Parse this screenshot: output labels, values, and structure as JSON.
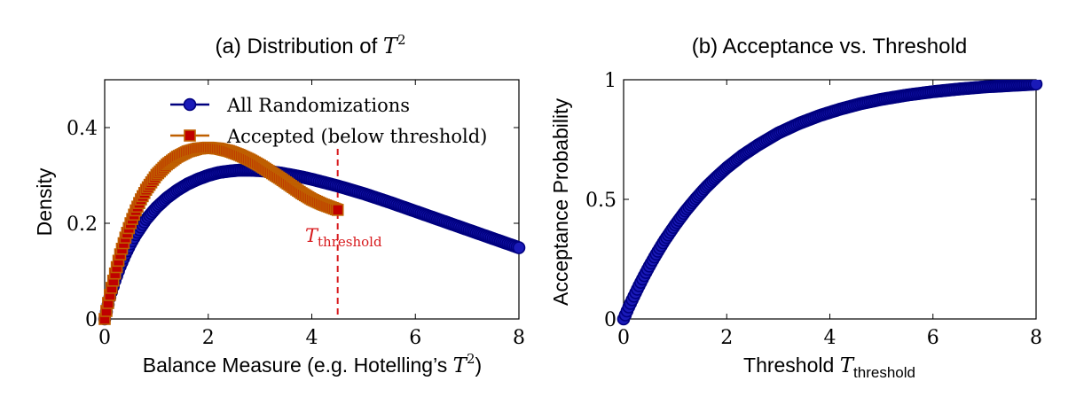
{
  "chart_data": [
    {
      "type": "line",
      "title_prefix": "(a) Distribution of",
      "title_symbol": "T",
      "title_sup": "2",
      "xlabel_prefix": "Balance Measure (e.g. Hotelling’s",
      "xlabel_symbol": "T",
      "xlabel_sup": "2",
      "xlabel_suffix": ")",
      "ylabel": "Density",
      "xlim": [
        0,
        8
      ],
      "ylim": [
        0,
        0.5
      ],
      "xticks": [
        0,
        2,
        4,
        6,
        8
      ],
      "yticks": [
        0,
        0.2,
        0.4
      ],
      "grid": false,
      "legend_position": "top-center",
      "series": [
        {
          "name": "All Randomizations",
          "color": "#00007f",
          "fill": "#1a1ab8",
          "marker": "circle",
          "x": [
            0,
            0.1,
            0.2,
            0.3,
            0.4,
            0.5,
            0.6,
            0.8,
            1.0,
            1.2,
            1.4,
            1.6,
            1.8,
            2.0,
            2.2,
            2.4,
            2.6,
            2.8,
            3.0,
            3.2,
            3.4,
            3.6,
            3.8,
            4.0,
            4.5,
            5.0,
            5.5,
            6.0,
            6.5,
            7.0,
            7.5,
            8.0
          ],
          "y": [
            0,
            0.045,
            0.08,
            0.11,
            0.135,
            0.157,
            0.176,
            0.208,
            0.233,
            0.253,
            0.269,
            0.282,
            0.292,
            0.3,
            0.306,
            0.309,
            0.311,
            0.311,
            0.31,
            0.308,
            0.305,
            0.301,
            0.297,
            0.292,
            0.278,
            0.262,
            0.244,
            0.225,
            0.206,
            0.187,
            0.168,
            0.149
          ]
        },
        {
          "name": "Accepted (below threshold)",
          "color": "#bf5f00",
          "fill": "#c00000",
          "marker": "square",
          "x": [
            0,
            0.1,
            0.2,
            0.3,
            0.4,
            0.5,
            0.6,
            0.7,
            0.8,
            1.0,
            1.2,
            1.4,
            1.6,
            1.8,
            2.0,
            2.2,
            2.4,
            2.6,
            2.8,
            3.0,
            3.2,
            3.4,
            3.6,
            3.8,
            4.0,
            4.2,
            4.4,
            4.5
          ],
          "y": [
            0,
            0.05,
            0.095,
            0.135,
            0.17,
            0.2,
            0.227,
            0.25,
            0.27,
            0.301,
            0.323,
            0.339,
            0.35,
            0.356,
            0.358,
            0.356,
            0.351,
            0.343,
            0.333,
            0.321,
            0.307,
            0.293,
            0.278,
            0.263,
            0.25,
            0.24,
            0.232,
            0.228
          ]
        }
      ],
      "annotations": [
        {
          "type": "vline",
          "x": 4.5,
          "color": "#d7191c",
          "dash": true,
          "label_symbol": "T",
          "label_sub": "threshold"
        }
      ]
    },
    {
      "type": "line",
      "title": "(b) Acceptance vs. Threshold",
      "xlabel_prefix": "Threshold",
      "xlabel_symbol": "T",
      "xlabel_sub": "threshold",
      "ylabel": "Acceptance Probability",
      "xlim": [
        0,
        8
      ],
      "ylim": [
        0,
        1
      ],
      "xticks": [
        0,
        2,
        4,
        6,
        8
      ],
      "yticks": [
        0,
        0.5,
        1
      ],
      "grid": false,
      "series": [
        {
          "color": "#00007f",
          "fill": "#1a1ab8",
          "marker": "circle",
          "x": [
            0,
            0.1,
            0.2,
            0.3,
            0.4,
            0.5,
            0.6,
            0.7,
            0.8,
            1.0,
            1.2,
            1.4,
            1.6,
            1.8,
            2.0,
            2.3,
            2.6,
            3.0,
            3.4,
            3.8,
            4.2,
            4.6,
            5.0,
            5.5,
            6.0,
            6.5,
            7.0,
            7.5,
            8.0
          ],
          "y": [
            0,
            0.05,
            0.095,
            0.139,
            0.181,
            0.221,
            0.259,
            0.295,
            0.33,
            0.393,
            0.451,
            0.503,
            0.551,
            0.593,
            0.632,
            0.683,
            0.726,
            0.777,
            0.817,
            0.85,
            0.877,
            0.9,
            0.918,
            0.936,
            0.95,
            0.961,
            0.97,
            0.976,
            0.982
          ]
        }
      ]
    }
  ]
}
